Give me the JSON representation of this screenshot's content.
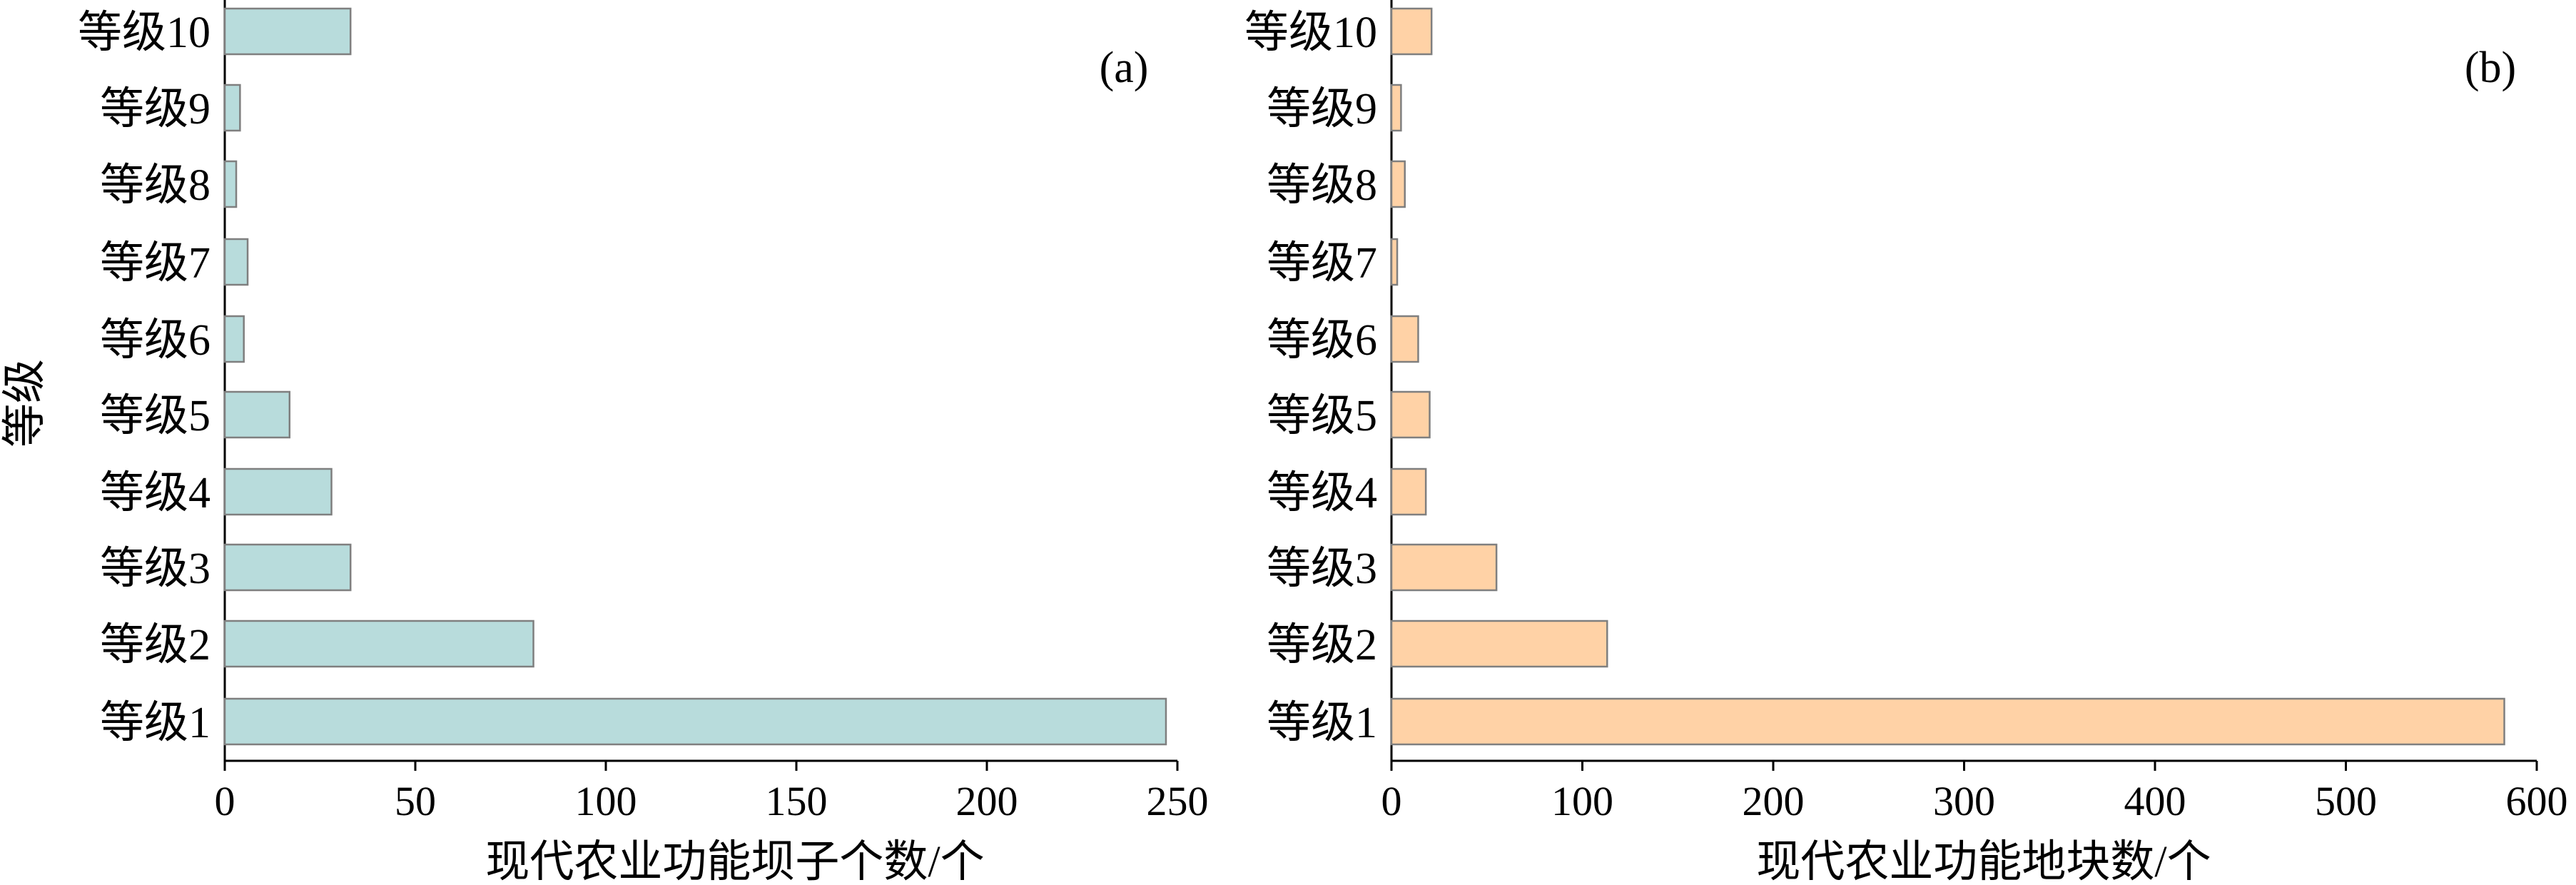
{
  "chart_data": [
    {
      "type": "bar",
      "orientation": "horizontal",
      "panel_label": "(a)",
      "categories": [
        "等级1",
        "等级2",
        "等级3",
        "等级4",
        "等级5",
        "等级6",
        "等级7",
        "等级8",
        "等级9",
        "等级10"
      ],
      "values": [
        247,
        81,
        33,
        28,
        17,
        5,
        6,
        3,
        4,
        33
      ],
      "xlabel": "现代农业功能坝子个数/个",
      "ylabel": "等级",
      "xlim": [
        0,
        250
      ],
      "xticks": [
        "0",
        "50",
        "100",
        "150",
        "200",
        "250"
      ],
      "bar_color": "#b8dcdc",
      "grid": false
    },
    {
      "type": "bar",
      "orientation": "horizontal",
      "panel_label": "(b)",
      "categories": [
        "等级1",
        "等级2",
        "等级3",
        "等级4",
        "等级5",
        "等级6",
        "等级7",
        "等级8",
        "等级9",
        "等级10"
      ],
      "values": [
        583,
        113,
        55,
        18,
        20,
        14,
        3,
        7,
        5,
        21
      ],
      "xlabel": "现代农业功能地块数/个",
      "ylabel": "",
      "xlim": [
        0,
        600
      ],
      "xticks": [
        "0",
        "100",
        "200",
        "300",
        "400",
        "500",
        "600"
      ],
      "bar_color": "#ffd2a6",
      "grid": false
    }
  ]
}
